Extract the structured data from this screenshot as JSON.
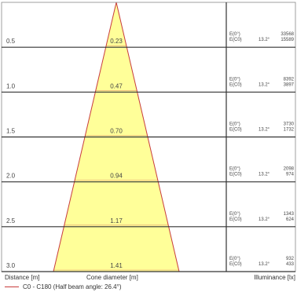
{
  "chart_data": {
    "type": "cone-diagram",
    "legend": "C0 - C180 (Half beam angle: 26.4°)",
    "xlabel": "Cone diameter [m]",
    "ylabel": "Distance [m]",
    "rightlabel": "Illuminance [lx]",
    "e0_label": "E(0°)",
    "ec0_label": "E(C0)",
    "angle": "13.2°",
    "rows": [
      {
        "distance": "0.5",
        "diameter": "0.23",
        "e0": "33568",
        "ec0": "15589"
      },
      {
        "distance": "1.0",
        "diameter": "0.47",
        "e0": "8392",
        "ec0": "3897"
      },
      {
        "distance": "1.5",
        "diameter": "0.70",
        "e0": "3730",
        "ec0": "1732"
      },
      {
        "distance": "2.0",
        "diameter": "0.94",
        "e0": "2098",
        "ec0": "974"
      },
      {
        "distance": "2.5",
        "diameter": "1.17",
        "e0": "1343",
        "ec0": "624"
      },
      {
        "distance": "3.0",
        "diameter": "1.41",
        "e0": "932",
        "ec0": "433"
      }
    ],
    "colors": {
      "cone_fill": "#ffff99",
      "cone_edge": "#c83c3c",
      "grid": "#333333"
    }
  }
}
